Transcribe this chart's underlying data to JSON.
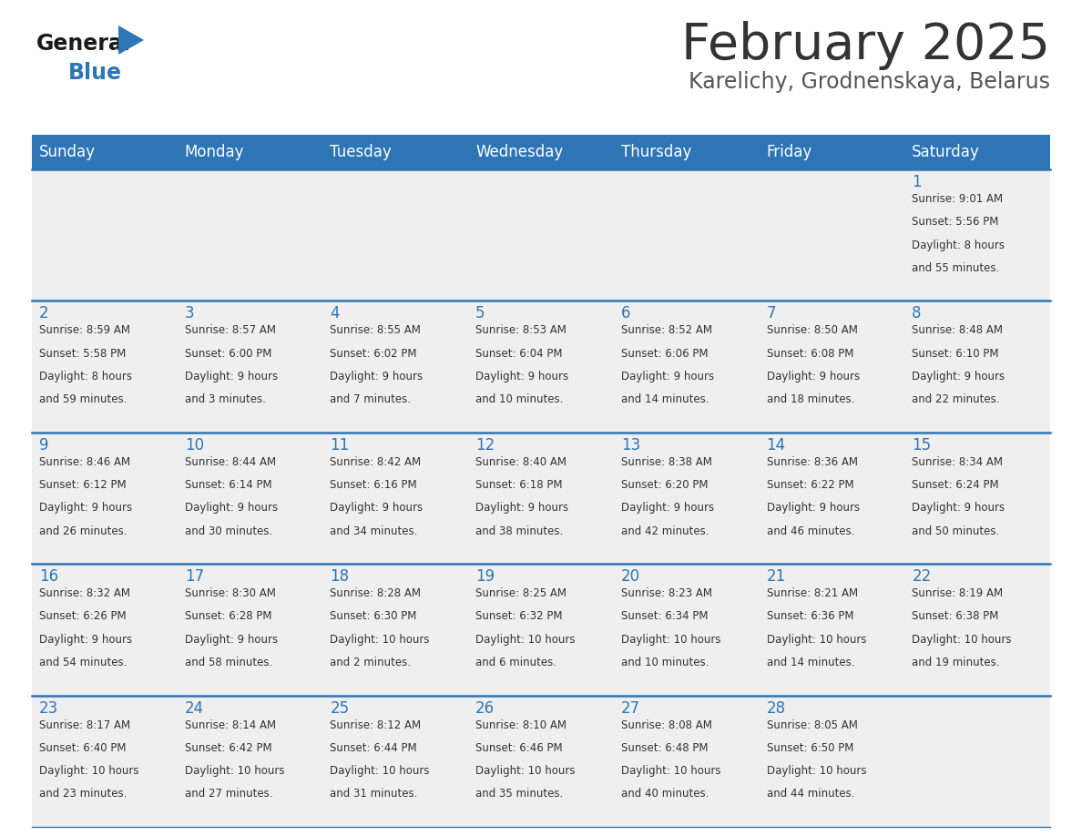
{
  "title": "February 2025",
  "subtitle": "Karelichy, Grodnenskaya, Belarus",
  "header_color": "#2E75B6",
  "header_text_color": "#FFFFFF",
  "cell_bg_color": "#EFEFEF",
  "day_number_color": "#2E75B6",
  "text_color": "#333333",
  "border_color": "#2E75B6",
  "days_of_week": [
    "Sunday",
    "Monday",
    "Tuesday",
    "Wednesday",
    "Thursday",
    "Friday",
    "Saturday"
  ],
  "weeks": [
    [
      {
        "day": null
      },
      {
        "day": null
      },
      {
        "day": null
      },
      {
        "day": null
      },
      {
        "day": null
      },
      {
        "day": null
      },
      {
        "day": 1,
        "sunrise": "9:01 AM",
        "sunset": "5:56 PM",
        "daylight_hours": 8,
        "daylight_minutes": 55
      }
    ],
    [
      {
        "day": 2,
        "sunrise": "8:59 AM",
        "sunset": "5:58 PM",
        "daylight_hours": 8,
        "daylight_minutes": 59
      },
      {
        "day": 3,
        "sunrise": "8:57 AM",
        "sunset": "6:00 PM",
        "daylight_hours": 9,
        "daylight_minutes": 3
      },
      {
        "day": 4,
        "sunrise": "8:55 AM",
        "sunset": "6:02 PM",
        "daylight_hours": 9,
        "daylight_minutes": 7
      },
      {
        "day": 5,
        "sunrise": "8:53 AM",
        "sunset": "6:04 PM",
        "daylight_hours": 9,
        "daylight_minutes": 10
      },
      {
        "day": 6,
        "sunrise": "8:52 AM",
        "sunset": "6:06 PM",
        "daylight_hours": 9,
        "daylight_minutes": 14
      },
      {
        "day": 7,
        "sunrise": "8:50 AM",
        "sunset": "6:08 PM",
        "daylight_hours": 9,
        "daylight_minutes": 18
      },
      {
        "day": 8,
        "sunrise": "8:48 AM",
        "sunset": "6:10 PM",
        "daylight_hours": 9,
        "daylight_minutes": 22
      }
    ],
    [
      {
        "day": 9,
        "sunrise": "8:46 AM",
        "sunset": "6:12 PM",
        "daylight_hours": 9,
        "daylight_minutes": 26
      },
      {
        "day": 10,
        "sunrise": "8:44 AM",
        "sunset": "6:14 PM",
        "daylight_hours": 9,
        "daylight_minutes": 30
      },
      {
        "day": 11,
        "sunrise": "8:42 AM",
        "sunset": "6:16 PM",
        "daylight_hours": 9,
        "daylight_minutes": 34
      },
      {
        "day": 12,
        "sunrise": "8:40 AM",
        "sunset": "6:18 PM",
        "daylight_hours": 9,
        "daylight_minutes": 38
      },
      {
        "day": 13,
        "sunrise": "8:38 AM",
        "sunset": "6:20 PM",
        "daylight_hours": 9,
        "daylight_minutes": 42
      },
      {
        "day": 14,
        "sunrise": "8:36 AM",
        "sunset": "6:22 PM",
        "daylight_hours": 9,
        "daylight_minutes": 46
      },
      {
        "day": 15,
        "sunrise": "8:34 AM",
        "sunset": "6:24 PM",
        "daylight_hours": 9,
        "daylight_minutes": 50
      }
    ],
    [
      {
        "day": 16,
        "sunrise": "8:32 AM",
        "sunset": "6:26 PM",
        "daylight_hours": 9,
        "daylight_minutes": 54
      },
      {
        "day": 17,
        "sunrise": "8:30 AM",
        "sunset": "6:28 PM",
        "daylight_hours": 9,
        "daylight_minutes": 58
      },
      {
        "day": 18,
        "sunrise": "8:28 AM",
        "sunset": "6:30 PM",
        "daylight_hours": 10,
        "daylight_minutes": 2
      },
      {
        "day": 19,
        "sunrise": "8:25 AM",
        "sunset": "6:32 PM",
        "daylight_hours": 10,
        "daylight_minutes": 6
      },
      {
        "day": 20,
        "sunrise": "8:23 AM",
        "sunset": "6:34 PM",
        "daylight_hours": 10,
        "daylight_minutes": 10
      },
      {
        "day": 21,
        "sunrise": "8:21 AM",
        "sunset": "6:36 PM",
        "daylight_hours": 10,
        "daylight_minutes": 14
      },
      {
        "day": 22,
        "sunrise": "8:19 AM",
        "sunset": "6:38 PM",
        "daylight_hours": 10,
        "daylight_minutes": 19
      }
    ],
    [
      {
        "day": 23,
        "sunrise": "8:17 AM",
        "sunset": "6:40 PM",
        "daylight_hours": 10,
        "daylight_minutes": 23
      },
      {
        "day": 24,
        "sunrise": "8:14 AM",
        "sunset": "6:42 PM",
        "daylight_hours": 10,
        "daylight_minutes": 27
      },
      {
        "day": 25,
        "sunrise": "8:12 AM",
        "sunset": "6:44 PM",
        "daylight_hours": 10,
        "daylight_minutes": 31
      },
      {
        "day": 26,
        "sunrise": "8:10 AM",
        "sunset": "6:46 PM",
        "daylight_hours": 10,
        "daylight_minutes": 35
      },
      {
        "day": 27,
        "sunrise": "8:08 AM",
        "sunset": "6:48 PM",
        "daylight_hours": 10,
        "daylight_minutes": 40
      },
      {
        "day": 28,
        "sunrise": "8:05 AM",
        "sunset": "6:50 PM",
        "daylight_hours": 10,
        "daylight_minutes": 44
      },
      {
        "day": null
      }
    ]
  ]
}
